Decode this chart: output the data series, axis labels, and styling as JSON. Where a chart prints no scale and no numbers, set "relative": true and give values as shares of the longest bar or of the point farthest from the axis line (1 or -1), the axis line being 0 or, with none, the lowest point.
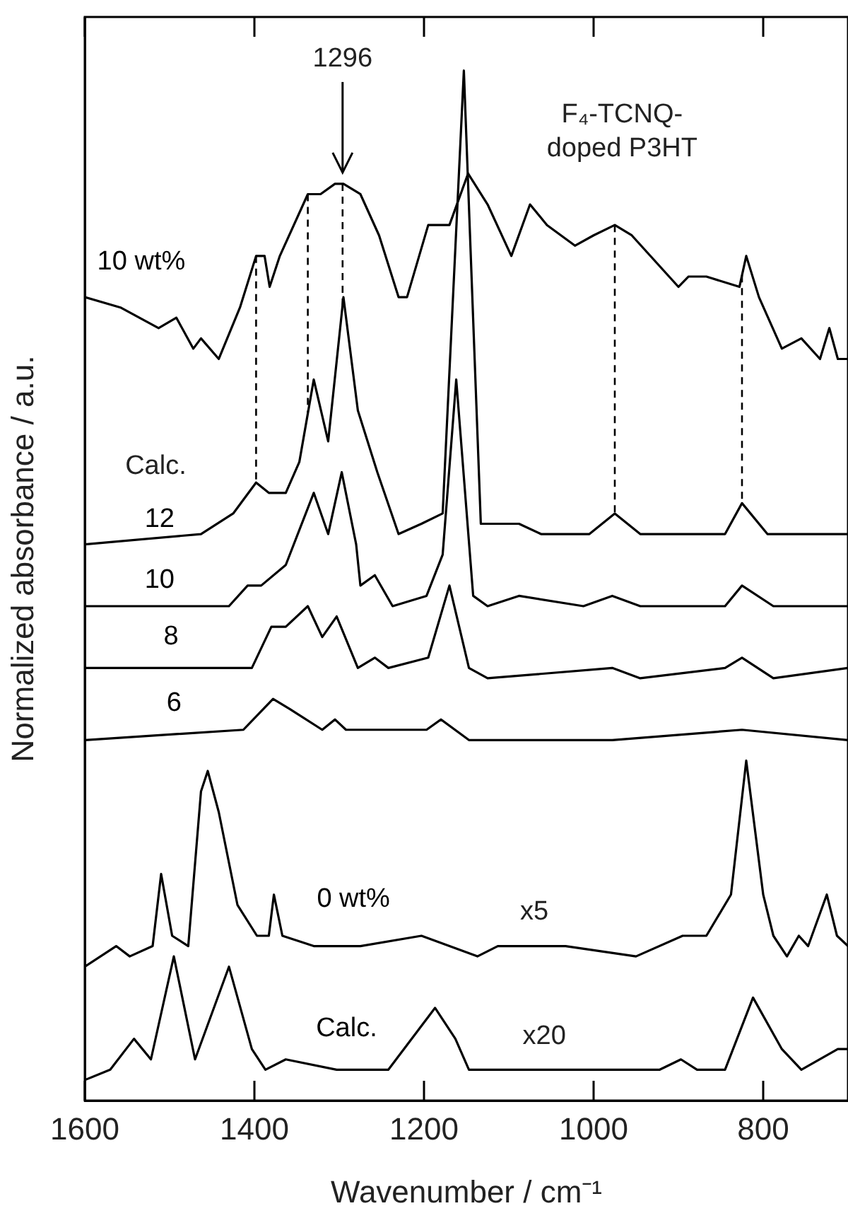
{
  "chart_data": {
    "type": "line",
    "relative": true,
    "xlabel": "Wavenumber / cm⁻¹",
    "ylabel": "Normalized absorbance / a.u.",
    "xlim": [
      1600,
      700
    ],
    "xticks": [
      1600,
      1400,
      1200,
      1000,
      800
    ],
    "grid": false,
    "legend": false,
    "marker": "none",
    "line_style": "solid",
    "series": [
      {
        "name": "10 wt%",
        "color": "#000000",
        "x": [
          1600,
          1558,
          1513,
          1492,
          1472,
          1463,
          1442,
          1417,
          1398,
          1388,
          1382,
          1370,
          1337,
          1322,
          1305,
          1295,
          1275,
          1253,
          1230,
          1220,
          1195,
          1170,
          1148,
          1125,
          1097,
          1075,
          1055,
          1022,
          1000,
          975,
          955,
          900,
          888,
          867,
          828,
          820,
          805,
          778,
          755,
          733,
          722,
          712,
          700
        ],
        "values": [
          0.78,
          0.77,
          0.75,
          0.76,
          0.73,
          0.74,
          0.72,
          0.77,
          0.82,
          0.82,
          0.79,
          0.82,
          0.88,
          0.88,
          0.89,
          0.89,
          0.88,
          0.84,
          0.78,
          0.78,
          0.85,
          0.85,
          0.9,
          0.87,
          0.82,
          0.87,
          0.85,
          0.83,
          0.84,
          0.85,
          0.84,
          0.79,
          0.8,
          0.8,
          0.79,
          0.82,
          0.78,
          0.73,
          0.74,
          0.72,
          0.75,
          0.72,
          0.72
        ]
      },
      {
        "name": "12",
        "color": "#000000",
        "x": [
          1600,
          1463,
          1425,
          1398,
          1383,
          1363,
          1347,
          1330,
          1313,
          1295,
          1278,
          1255,
          1230,
          1203,
          1178,
          1153,
          1133,
          1088,
          1062,
          1028,
          1005,
          975,
          945,
          845,
          825,
          795,
          700
        ],
        "values": [
          0.54,
          0.55,
          0.57,
          0.6,
          0.59,
          0.59,
          0.62,
          0.7,
          0.64,
          0.78,
          0.67,
          0.61,
          0.55,
          0.56,
          0.57,
          1,
          0.56,
          0.56,
          0.55,
          0.55,
          0.55,
          0.57,
          0.55,
          0.55,
          0.58,
          0.55,
          0.55
        ]
      },
      {
        "name": "10",
        "color": "#000000",
        "x": [
          1600,
          1430,
          1408,
          1392,
          1363,
          1330,
          1313,
          1297,
          1280,
          1275,
          1258,
          1237,
          1197,
          1178,
          1162,
          1142,
          1125,
          1088,
          1012,
          978,
          945,
          845,
          825,
          788,
          700
        ],
        "values": [
          0.48,
          0.48,
          0.5,
          0.5,
          0.52,
          0.59,
          0.55,
          0.61,
          0.54,
          0.5,
          0.51,
          0.48,
          0.49,
          0.53,
          0.7,
          0.49,
          0.48,
          0.49,
          0.48,
          0.49,
          0.48,
          0.48,
          0.5,
          0.48,
          0.48
        ]
      },
      {
        "name": "8",
        "color": "#000000",
        "x": [
          1600,
          1403,
          1380,
          1363,
          1337,
          1320,
          1303,
          1278,
          1258,
          1242,
          1195,
          1170,
          1147,
          1125,
          978,
          945,
          845,
          825,
          788,
          700
        ],
        "values": [
          0.42,
          0.42,
          0.46,
          0.46,
          0.48,
          0.45,
          0.47,
          0.42,
          0.43,
          0.42,
          0.43,
          0.5,
          0.42,
          0.41,
          0.42,
          0.41,
          0.42,
          0.43,
          0.41,
          0.42
        ]
      },
      {
        "name": "6",
        "color": "#000000",
        "x": [
          1600,
          1413,
          1378,
          1358,
          1320,
          1305,
          1292,
          1197,
          1180,
          1147,
          978,
          825,
          700
        ],
        "values": [
          0.35,
          0.36,
          0.39,
          0.38,
          0.36,
          0.37,
          0.36,
          0.36,
          0.37,
          0.35,
          0.35,
          0.36,
          0.35
        ]
      },
      {
        "name": "0 wt%",
        "color": "#000000",
        "x": [
          1600,
          1563,
          1547,
          1520,
          1510,
          1497,
          1478,
          1463,
          1455,
          1442,
          1420,
          1397,
          1383,
          1377,
          1367,
          1330,
          1275,
          1203,
          1137,
          1113,
          1033,
          950,
          895,
          867,
          838,
          820,
          800,
          788,
          772,
          758,
          747,
          725,
          713,
          700
        ],
        "values": [
          0.13,
          0.15,
          0.14,
          0.15,
          0.22,
          0.16,
          0.15,
          0.3,
          0.32,
          0.28,
          0.19,
          0.16,
          0.16,
          0.2,
          0.16,
          0.15,
          0.15,
          0.16,
          0.14,
          0.15,
          0.15,
          0.14,
          0.16,
          0.16,
          0.2,
          0.33,
          0.2,
          0.16,
          0.14,
          0.16,
          0.15,
          0.2,
          0.16,
          0.15
        ]
      },
      {
        "name": "Calc.",
        "color": "#000000",
        "x": [
          1600,
          1570,
          1542,
          1522,
          1495,
          1470,
          1430,
          1403,
          1387,
          1363,
          1303,
          1242,
          1187,
          1163,
          1147,
          1092,
          1067,
          978,
          922,
          897,
          878,
          845,
          812,
          778,
          755,
          712,
          700
        ],
        "values": [
          0.02,
          0.03,
          0.06,
          0.04,
          0.14,
          0.04,
          0.13,
          0.05,
          0.03,
          0.04,
          0.03,
          0.03,
          0.09,
          0.06,
          0.03,
          0.03,
          0.03,
          0.03,
          0.03,
          0.04,
          0.03,
          0.03,
          0.1,
          0.05,
          0.03,
          0.05,
          0.05
        ]
      }
    ],
    "ref_lines": [
      {
        "axis": "x",
        "value": 1398,
        "line_style": "dashed"
      },
      {
        "axis": "x",
        "value": 1337,
        "line_style": "dashed"
      },
      {
        "axis": "x",
        "value": 1296,
        "line_style": "dashed"
      },
      {
        "axis": "x",
        "value": 975,
        "line_style": "dashed"
      },
      {
        "axis": "x",
        "value": 825,
        "line_style": "dashed"
      }
    ],
    "annotations": [
      {
        "text": "1296",
        "x": 1296,
        "y": 0.89
      },
      "F₄-TCNQ-\ndoped P3HT",
      "Calc.",
      "x5",
      "x20"
    ]
  }
}
